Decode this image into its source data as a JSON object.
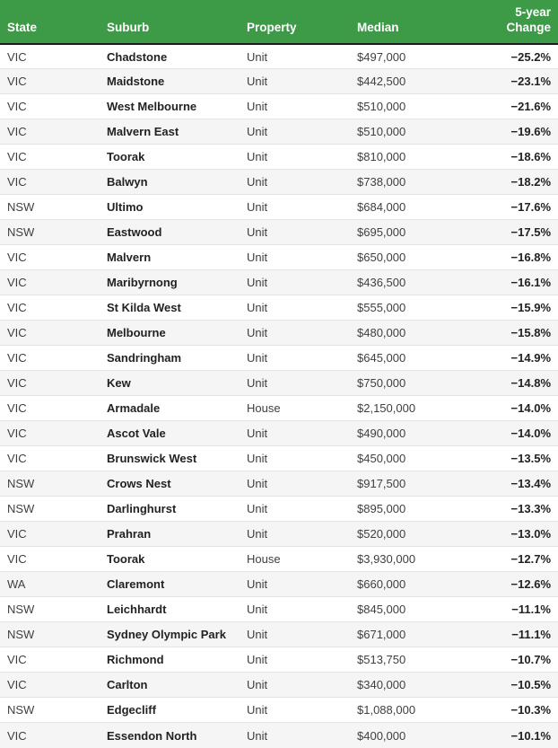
{
  "colors": {
    "header_bg": "#3d9b48",
    "header_text": "#ffffff",
    "header_border": "#1c1c1c",
    "row_alt_bg": "#f5f5f5",
    "row_border": "#e3e3e3",
    "text": "#3f3f3f",
    "text_strong": "#222222"
  },
  "table": {
    "columns": [
      {
        "key": "state",
        "label": "State"
      },
      {
        "key": "suburb",
        "label": "Suburb"
      },
      {
        "key": "property",
        "label": "Property"
      },
      {
        "key": "median",
        "label": "Median"
      },
      {
        "key": "change",
        "label": "5-year Change"
      }
    ],
    "rows": [
      {
        "state": "VIC",
        "suburb": "Chadstone",
        "property": "Unit",
        "median": "$497,000",
        "change": "−25.2%"
      },
      {
        "state": "VIC",
        "suburb": "Maidstone",
        "property": "Unit",
        "median": "$442,500",
        "change": "−23.1%"
      },
      {
        "state": "VIC",
        "suburb": "West Melbourne",
        "property": "Unit",
        "median": "$510,000",
        "change": "−21.6%"
      },
      {
        "state": "VIC",
        "suburb": "Malvern East",
        "property": "Unit",
        "median": "$510,000",
        "change": "−19.6%"
      },
      {
        "state": "VIC",
        "suburb": "Toorak",
        "property": "Unit",
        "median": "$810,000",
        "change": "−18.6%"
      },
      {
        "state": "VIC",
        "suburb": "Balwyn",
        "property": "Unit",
        "median": "$738,000",
        "change": "−18.2%"
      },
      {
        "state": "NSW",
        "suburb": "Ultimo",
        "property": "Unit",
        "median": "$684,000",
        "change": "−17.6%"
      },
      {
        "state": "NSW",
        "suburb": "Eastwood",
        "property": "Unit",
        "median": "$695,000",
        "change": "−17.5%"
      },
      {
        "state": "VIC",
        "suburb": "Malvern",
        "property": "Unit",
        "median": "$650,000",
        "change": "−16.8%"
      },
      {
        "state": "VIC",
        "suburb": "Maribyrnong",
        "property": "Unit",
        "median": "$436,500",
        "change": "−16.1%"
      },
      {
        "state": "VIC",
        "suburb": "St Kilda West",
        "property": "Unit",
        "median": "$555,000",
        "change": "−15.9%"
      },
      {
        "state": "VIC",
        "suburb": "Melbourne",
        "property": "Unit",
        "median": "$480,000",
        "change": "−15.8%"
      },
      {
        "state": "VIC",
        "suburb": "Sandringham",
        "property": "Unit",
        "median": "$645,000",
        "change": "−14.9%"
      },
      {
        "state": "VIC",
        "suburb": "Kew",
        "property": "Unit",
        "median": "$750,000",
        "change": "−14.8%"
      },
      {
        "state": "VIC",
        "suburb": "Armadale",
        "property": "House",
        "median": "$2,150,000",
        "change": "−14.0%"
      },
      {
        "state": "VIC",
        "suburb": "Ascot Vale",
        "property": "Unit",
        "median": "$490,000",
        "change": "−14.0%"
      },
      {
        "state": "VIC",
        "suburb": "Brunswick West",
        "property": "Unit",
        "median": "$450,000",
        "change": "−13.5%"
      },
      {
        "state": "NSW",
        "suburb": "Crows Nest",
        "property": "Unit",
        "median": "$917,500",
        "change": "−13.4%"
      },
      {
        "state": "NSW",
        "suburb": "Darlinghurst",
        "property": "Unit",
        "median": "$895,000",
        "change": "−13.3%"
      },
      {
        "state": "VIC",
        "suburb": "Prahran",
        "property": "Unit",
        "median": "$520,000",
        "change": "−13.0%"
      },
      {
        "state": "VIC",
        "suburb": "Toorak",
        "property": "House",
        "median": "$3,930,000",
        "change": "−12.7%"
      },
      {
        "state": "WA",
        "suburb": "Claremont",
        "property": "Unit",
        "median": "$660,000",
        "change": "−12.6%"
      },
      {
        "state": "NSW",
        "suburb": "Leichhardt",
        "property": "Unit",
        "median": "$845,000",
        "change": "−11.1%"
      },
      {
        "state": "NSW",
        "suburb": "Sydney Olympic Park",
        "property": "Unit",
        "median": "$671,000",
        "change": "−11.1%"
      },
      {
        "state": "VIC",
        "suburb": "Richmond",
        "property": "Unit",
        "median": "$513,750",
        "change": "−10.7%"
      },
      {
        "state": "VIC",
        "suburb": "Carlton",
        "property": "Unit",
        "median": "$340,000",
        "change": "−10.5%"
      },
      {
        "state": "NSW",
        "suburb": "Edgecliff",
        "property": "Unit",
        "median": "$1,088,000",
        "change": "−10.3%"
      },
      {
        "state": "VIC",
        "suburb": "Essendon North",
        "property": "Unit",
        "median": "$400,000",
        "change": "−10.1%"
      }
    ]
  }
}
